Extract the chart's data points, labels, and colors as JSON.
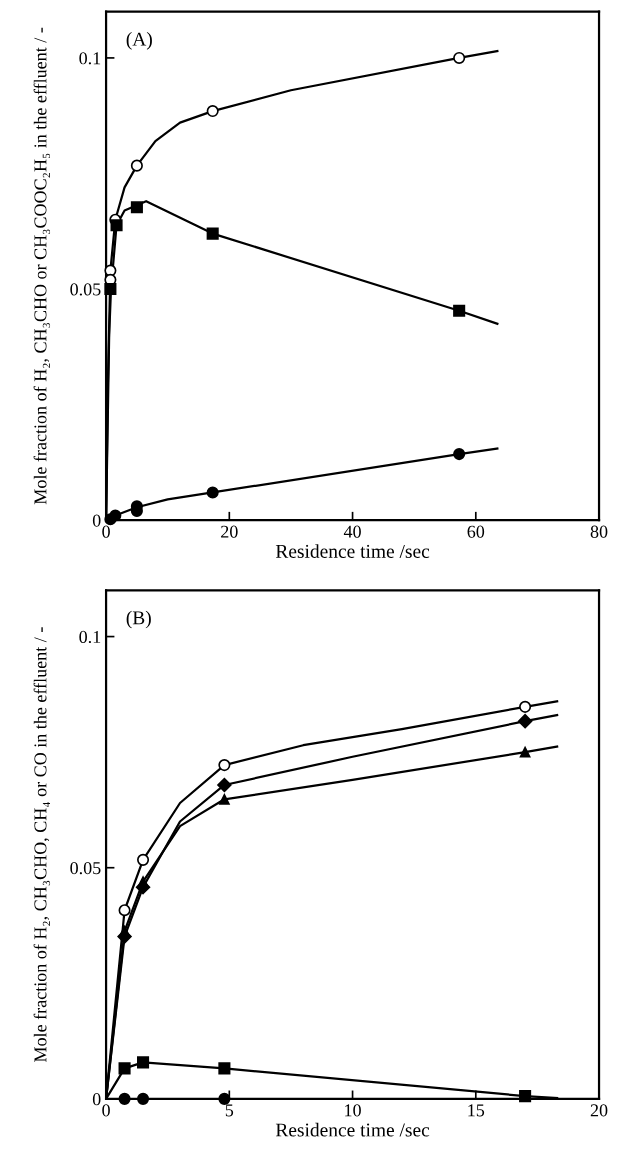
{
  "chart_data": [
    {
      "type": "scatter",
      "annotations": [
        "(A)"
      ],
      "xlabel": "Residence time /sec",
      "ylabel": "Mole fraction of H₂, CH₃CHO or CH₃COOC₂H₅ in the effluent / -",
      "xlim": [
        0,
        80
      ],
      "ylim": [
        0,
        0.11
      ],
      "xticks": [
        0,
        20,
        40,
        60,
        80
      ],
      "yticks": [
        0,
        0.05,
        0.1
      ],
      "grid": false,
      "legend": false,
      "series": [
        {
          "type": "line",
          "color": "#000000",
          "marker": "none",
          "line_style": "solid",
          "x": [
            0,
            0.3,
            0.7,
            1.5,
            3,
            5,
            8,
            12,
            17.3,
            30,
            57.3,
            63.5
          ],
          "values": [
            0,
            0.03,
            0.054,
            0.065,
            0.072,
            0.0767,
            0.082,
            0.086,
            0.0885,
            0.093,
            0.1,
            0.1015
          ]
        },
        {
          "type": "line",
          "color": "#000000",
          "marker": "none",
          "line_style": "solid",
          "x": [
            0,
            0.5,
            0.8,
            1.7,
            3,
            6.5,
            17.3,
            57.3,
            63.5
          ],
          "values": [
            0,
            0.04,
            0.05,
            0.0638,
            0.067,
            0.069,
            0.062,
            0.0453,
            0.0425
          ]
        },
        {
          "type": "line",
          "color": "#000000",
          "marker": "none",
          "line_style": "solid",
          "x": [
            0,
            1.5,
            5,
            10,
            17.3,
            57.3,
            63.5
          ],
          "values": [
            0,
            0.001,
            0.0028,
            0.0045,
            0.006,
            0.0143,
            0.0155
          ]
        },
        {
          "color": "#ffffff",
          "marker": "circle",
          "x": [
            0.7,
            0.7,
            1.5,
            5,
            17.3,
            57.3
          ],
          "values": [
            0.054,
            0.052,
            0.065,
            0.0767,
            0.0885,
            0.1
          ]
        },
        {
          "color": "#000000",
          "marker": "square",
          "x": [
            0.7,
            1.7,
            5,
            17.3,
            57.3
          ],
          "values": [
            0.05,
            0.0638,
            0.0677,
            0.062,
            0.0453
          ]
        },
        {
          "color": "#000000",
          "marker": "circle",
          "x": [
            0.7,
            1.5,
            5,
            5,
            17.3,
            57.3
          ],
          "values": [
            0.0002,
            0.001,
            0.003,
            0.002,
            0.006,
            0.0143
          ]
        }
      ]
    },
    {
      "type": "scatter",
      "annotations": [
        "(B)"
      ],
      "xlabel": "Residence time /sec",
      "ylabel": "Mole fraction of H₂, CH₃CHO, CH₄ or CO in the effluent / -",
      "xlim": [
        0,
        20
      ],
      "ylim": [
        0,
        0.11
      ],
      "xticks": [
        0,
        5,
        10,
        15,
        20
      ],
      "yticks": [
        0,
        0.05,
        0.1
      ],
      "grid": false,
      "legend": false,
      "series": [
        {
          "type": "line",
          "color": "#000000",
          "marker": "none",
          "line_style": "solid",
          "x": [
            0,
            0.75,
            1.5,
            3,
            4.8,
            8,
            12,
            17,
            18.3
          ],
          "values": [
            0,
            0.0408,
            0.0517,
            0.064,
            0.0722,
            0.0765,
            0.08,
            0.0848,
            0.086
          ]
        },
        {
          "type": "line",
          "color": "#000000",
          "marker": "none",
          "line_style": "solid",
          "x": [
            0,
            0.75,
            1.5,
            3,
            4.8,
            10,
            17,
            18.3
          ],
          "values": [
            0,
            0.0351,
            0.0458,
            0.06,
            0.0679,
            0.074,
            0.0817,
            0.083
          ]
        },
        {
          "type": "line",
          "color": "#000000",
          "marker": "none",
          "line_style": "solid",
          "x": [
            0,
            0.75,
            1.5,
            3,
            4.8,
            10,
            17,
            18.3
          ],
          "values": [
            0,
            0.0363,
            0.047,
            0.059,
            0.0648,
            0.069,
            0.075,
            0.0762
          ]
        },
        {
          "type": "line",
          "color": "#000000",
          "marker": "none",
          "line_style": "solid",
          "x": [
            0,
            0.75,
            1.5,
            4.8,
            17,
            18.3
          ],
          "values": [
            0,
            0.0066,
            0.0079,
            0.0066,
            0.0006,
            0.0002
          ]
        },
        {
          "color": "#ffffff",
          "marker": "circle",
          "x": [
            0.75,
            1.5,
            4.8,
            17
          ],
          "values": [
            0.0408,
            0.0517,
            0.0722,
            0.0848
          ]
        },
        {
          "color": "#000000",
          "marker": "diamond",
          "x": [
            0.75,
            1.5,
            4.8,
            17
          ],
          "values": [
            0.0351,
            0.0458,
            0.0679,
            0.0817
          ]
        },
        {
          "color": "#000000",
          "marker": "triangle",
          "x": [
            0.75,
            1.5,
            4.8,
            17
          ],
          "values": [
            0.0363,
            0.047,
            0.0648,
            0.075
          ]
        },
        {
          "color": "#000000",
          "marker": "square",
          "x": [
            0.75,
            1.5,
            4.8,
            17
          ],
          "values": [
            0.0066,
            0.0079,
            0.0066,
            0.0006
          ]
        },
        {
          "color": "#000000",
          "marker": "circle",
          "x": [
            0.75,
            1.5,
            4.8
          ],
          "values": [
            0,
            0,
            0
          ]
        }
      ]
    }
  ]
}
